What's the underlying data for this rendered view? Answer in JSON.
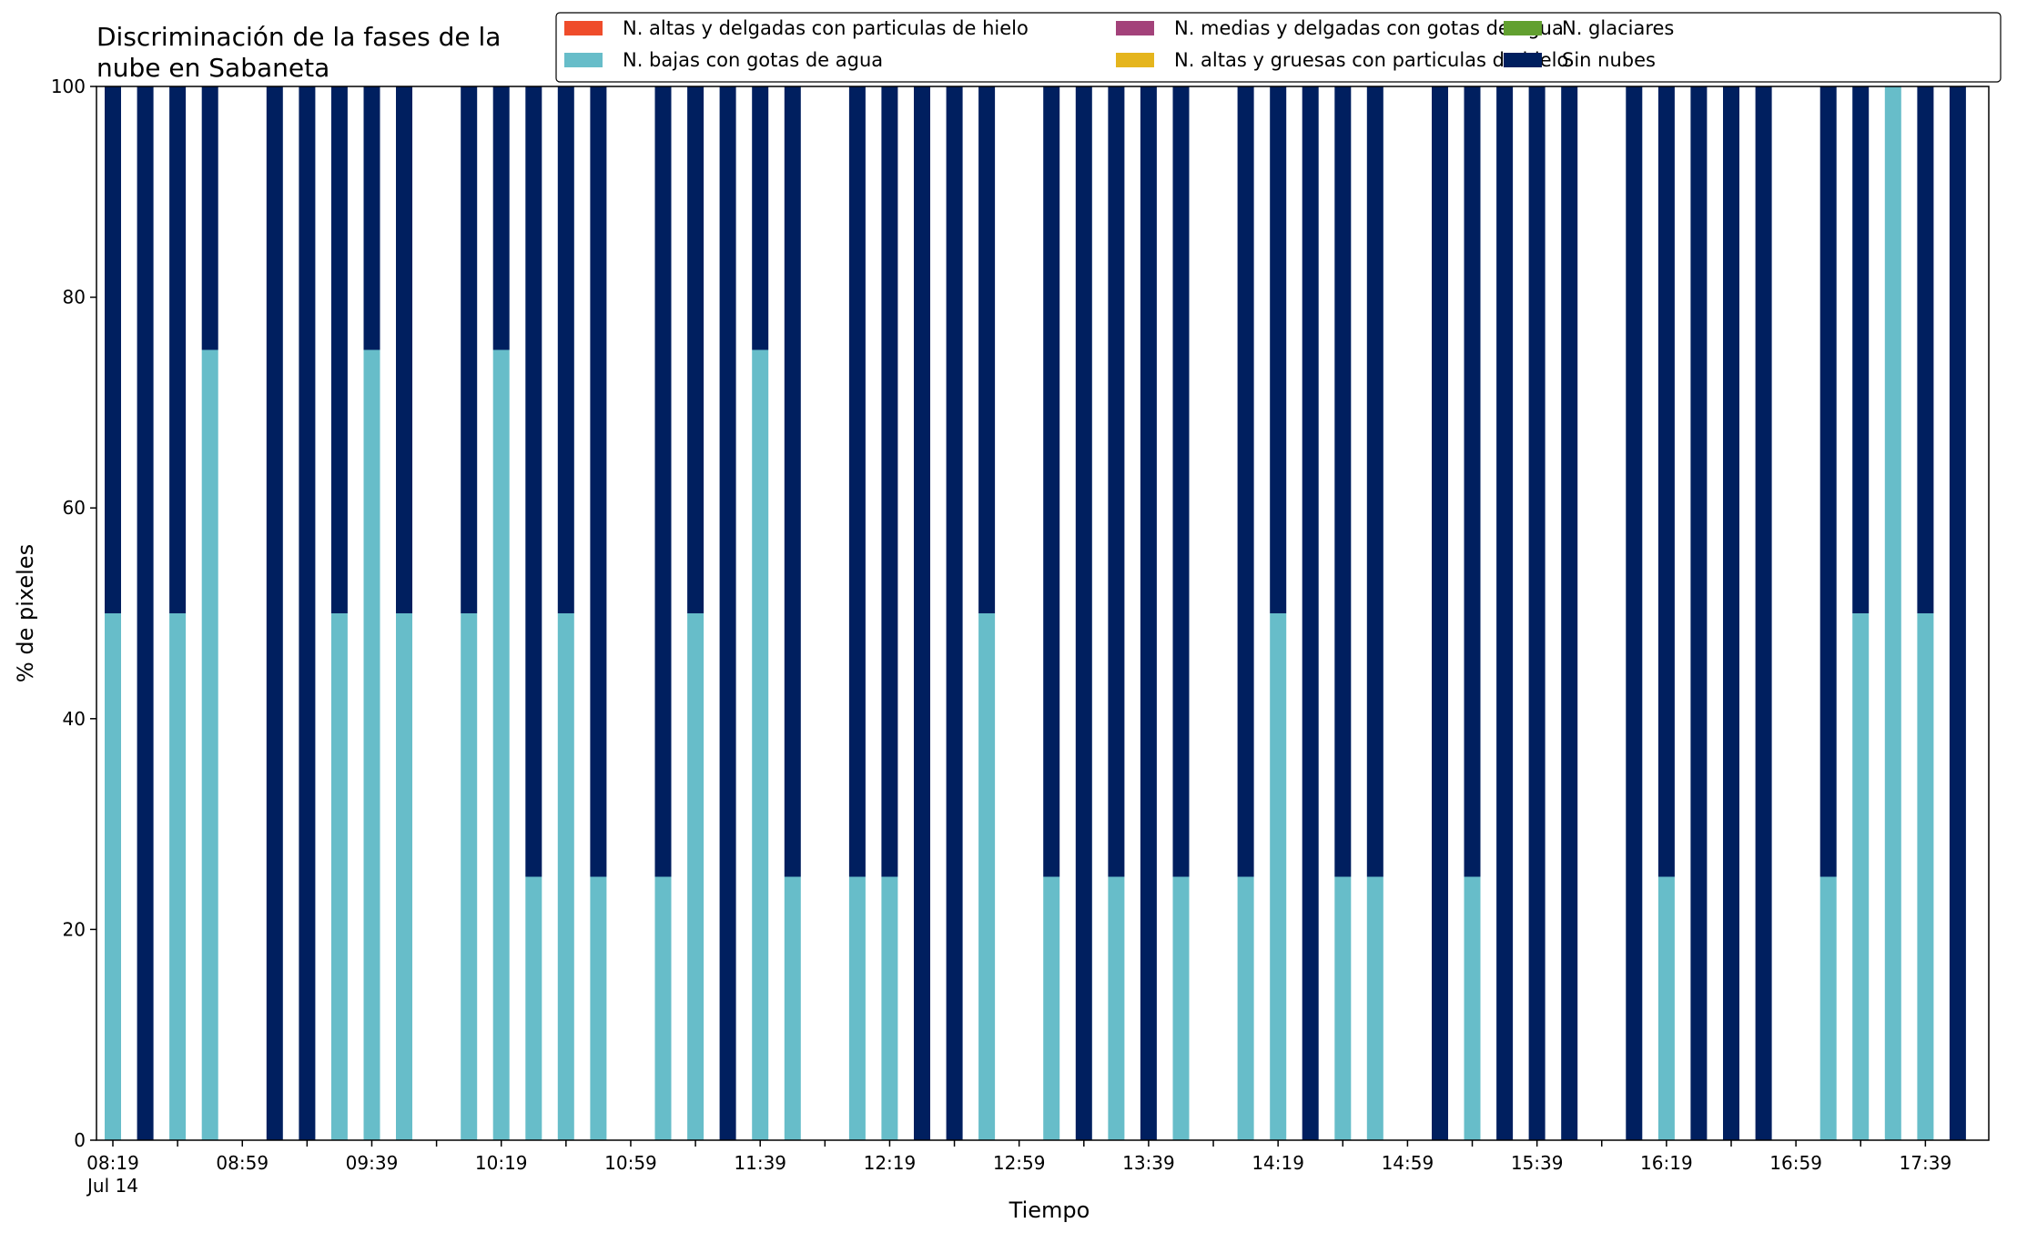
{
  "chart_data": {
    "type": "bar",
    "stacked": true,
    "title_lines": [
      "Discriminación de la fases de la",
      "nube en Sabaneta"
    ],
    "xlabel": "Tiempo",
    "ylabel": "% de pixeles",
    "ylim": [
      0,
      100
    ],
    "yticks": [
      0,
      20,
      40,
      60,
      80,
      100
    ],
    "x_start": "2023-07-14 08:19",
    "x_end": "2023-07-14 18:00",
    "xtick_labels": [
      "08:19",
      "08:59",
      "09:39",
      "10:19",
      "10:59",
      "11:39",
      "12:19",
      "12:59",
      "13:39",
      "14:19",
      "14:59",
      "15:39",
      "16:19",
      "16:59",
      "17:39"
    ],
    "xtick_sublabel": "Jul 14",
    "grid": false,
    "legend_position": "top-right",
    "legend": [
      {
        "label": "N. altas y delgadas con particulas de hielo",
        "color": "#ef4c2b"
      },
      {
        "label": "N. bajas con gotas de agua",
        "color": "#67bdc9"
      },
      {
        "label": "N. medias y delgadas con gotas de agua",
        "color": "#a3427a"
      },
      {
        "label": "N. altas y gruesas con particulas de hielo",
        "color": "#e5b51d"
      },
      {
        "label": "N. glaciares",
        "color": "#62a030"
      },
      {
        "label": "Sin nubes",
        "color": "#001f5f"
      }
    ],
    "categories": [
      "08:19",
      "08:29",
      "08:39",
      "08:49",
      "08:59",
      "09:09",
      "09:19",
      "09:29",
      "09:39",
      "09:49",
      "09:59",
      "10:09",
      "10:19",
      "10:29",
      "10:39",
      "10:49",
      "10:59",
      "11:09",
      "11:19",
      "11:29",
      "11:39",
      "11:49",
      "11:59",
      "12:09",
      "12:19",
      "12:29",
      "12:39",
      "12:49",
      "12:59",
      "13:09",
      "13:19",
      "13:29",
      "13:39",
      "13:49",
      "13:59",
      "14:09",
      "14:19",
      "14:29",
      "14:39",
      "14:49",
      "14:59",
      "15:09",
      "15:19",
      "15:29",
      "15:39",
      "15:49",
      "15:59",
      "16:09",
      "16:19",
      "16:29",
      "16:39",
      "16:49",
      "16:59",
      "17:09",
      "17:19",
      "17:29",
      "17:39",
      "17:49"
    ],
    "series": [
      {
        "name": "N. altas y delgadas con particulas de hielo",
        "color": "#ef4c2b",
        "values": [
          0,
          0,
          0,
          0,
          null,
          0,
          0,
          0,
          0,
          0,
          null,
          0,
          0,
          0,
          0,
          0,
          null,
          0,
          0,
          0,
          0,
          0,
          null,
          0,
          0,
          0,
          0,
          0,
          null,
          0,
          0,
          0,
          0,
          0,
          null,
          0,
          0,
          0,
          0,
          0,
          null,
          0,
          0,
          0,
          0,
          0,
          null,
          0,
          0,
          0,
          0,
          0,
          null,
          0,
          0,
          0,
          0,
          0
        ]
      },
      {
        "name": "N. altas y gruesas con particulas de hielo",
        "color": "#e5b51d",
        "values": [
          0,
          0,
          0,
          0,
          null,
          0,
          0,
          0,
          0,
          0,
          null,
          0,
          0,
          0,
          0,
          0,
          null,
          0,
          0,
          0,
          0,
          0,
          null,
          0,
          0,
          0,
          0,
          0,
          null,
          0,
          0,
          0,
          0,
          0,
          null,
          0,
          0,
          0,
          0,
          0,
          null,
          0,
          0,
          0,
          0,
          0,
          null,
          0,
          0,
          0,
          0,
          0,
          null,
          0,
          0,
          0,
          0,
          0
        ]
      },
      {
        "name": "N. bajas con gotas de agua",
        "color": "#67bdc9",
        "values": [
          50,
          0,
          50,
          75,
          null,
          0,
          0,
          50,
          75,
          50,
          null,
          50,
          75,
          25,
          50,
          25,
          null,
          25,
          50,
          0,
          75,
          25,
          null,
          25,
          25,
          0,
          0,
          50,
          null,
          25,
          0,
          25,
          0,
          25,
          null,
          25,
          50,
          0,
          25,
          25,
          null,
          0,
          25,
          0,
          0,
          0,
          null,
          0,
          25,
          0,
          0,
          0,
          null,
          25,
          50,
          100,
          50,
          0
        ]
      },
      {
        "name": "N. glaciares",
        "color": "#62a030",
        "values": [
          0,
          0,
          0,
          0,
          null,
          0,
          0,
          0,
          0,
          0,
          null,
          0,
          0,
          0,
          0,
          0,
          null,
          0,
          0,
          0,
          0,
          0,
          null,
          0,
          0,
          0,
          0,
          0,
          null,
          0,
          0,
          0,
          0,
          0,
          null,
          0,
          0,
          0,
          0,
          0,
          null,
          0,
          0,
          0,
          0,
          0,
          null,
          0,
          0,
          0,
          0,
          0,
          null,
          0,
          0,
          0,
          0,
          0
        ]
      },
      {
        "name": "N. medias y delgadas con gotas de agua",
        "color": "#a3427a",
        "values": [
          0,
          0,
          0,
          0,
          null,
          0,
          0,
          0,
          0,
          0,
          null,
          0,
          0,
          0,
          0,
          0,
          null,
          0,
          0,
          0,
          0,
          0,
          null,
          0,
          0,
          0,
          0,
          0,
          null,
          0,
          0,
          0,
          0,
          0,
          null,
          0,
          0,
          0,
          0,
          0,
          null,
          0,
          0,
          0,
          0,
          0,
          null,
          0,
          0,
          0,
          0,
          0,
          null,
          0,
          0,
          0,
          0,
          0
        ]
      },
      {
        "name": "Sin nubes",
        "color": "#001f5f",
        "values": [
          50,
          100,
          50,
          25,
          null,
          100,
          100,
          50,
          25,
          50,
          null,
          50,
          25,
          75,
          50,
          75,
          null,
          75,
          50,
          100,
          25,
          75,
          null,
          75,
          75,
          100,
          100,
          50,
          null,
          75,
          100,
          75,
          100,
          75,
          null,
          75,
          50,
          100,
          75,
          75,
          null,
          100,
          75,
          100,
          100,
          100,
          null,
          100,
          75,
          100,
          100,
          100,
          null,
          75,
          50,
          0,
          50,
          100
        ]
      }
    ]
  }
}
